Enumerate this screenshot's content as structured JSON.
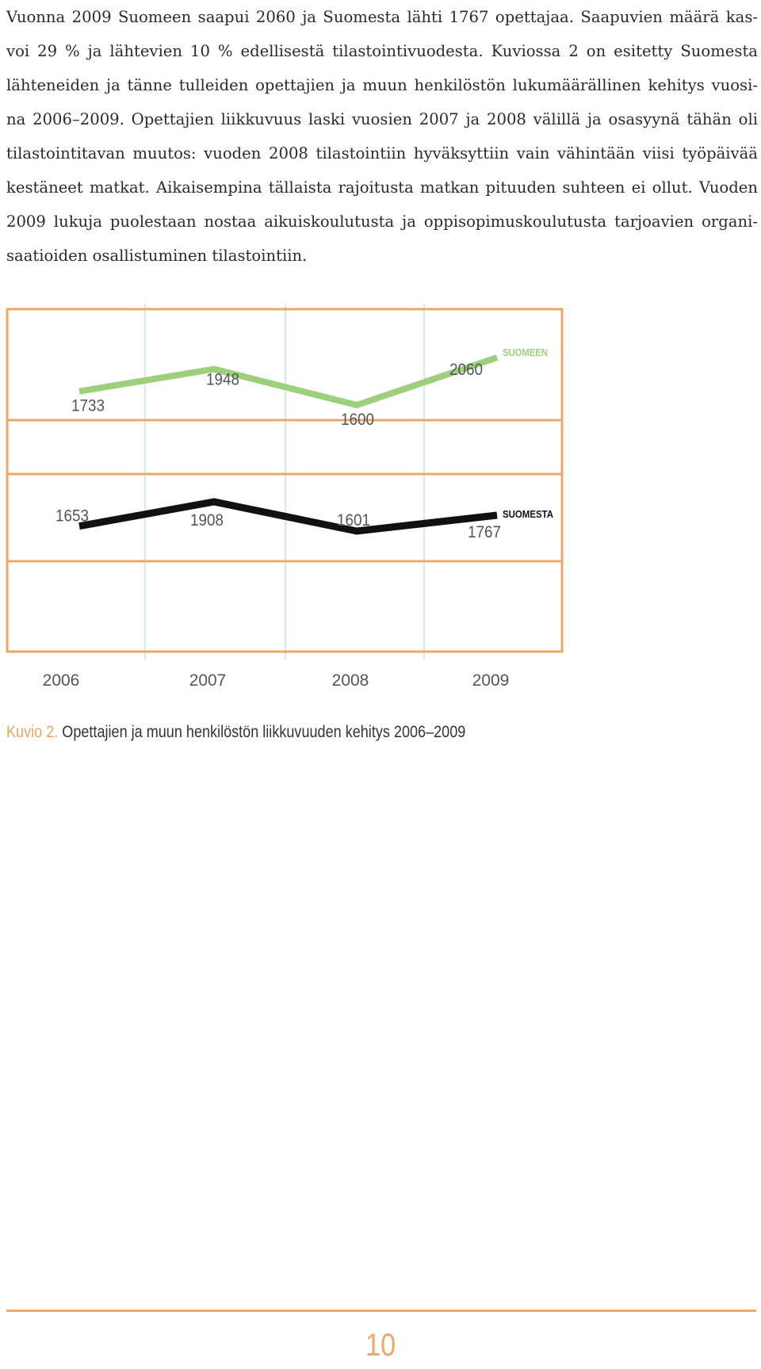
{
  "body_text": {
    "lines": [
      "Vuonna 2009 Suomeen saapui 2060 ja Suomesta lähti 1767 opettajaa. Saapuvien määrä kas-",
      "voi 29 % ja lähtevien 10 % edellisestä tilastointivuodesta. Kuviossa 2 on esitetty Suomesta",
      "lähteneiden ja tänne tulleiden opettajien ja muun henkilöstön lukumäärällinen kehitys vuosi-",
      "na 2006–2009. Opettajien liikkuvuus laski vuosien 2007 ja 2008 välillä ja osasyynä tähän oli",
      "tilastointitavan muutos: vuoden 2008 tilastointiin hyväksyttiin vain vähintään viisi työpäivää",
      "kestäneet matkat. Aikaisempina tällaista rajoitusta matkan pituuden suhteen ei ollut. Vuoden",
      "2009 lukuja puolestaan nostaa aikuiskoulutusta ja oppisopimuskoulutusta tarjoavien organi-",
      "saatioiden osallistuminen tilastointiin."
    ]
  },
  "chart_data": {
    "type": "line",
    "categories": [
      "2006",
      "2007",
      "2008",
      "2009"
    ],
    "series": [
      {
        "name": "SUOMEEN",
        "values": [
          1733,
          1948,
          1600,
          2060
        ],
        "color": "#9dcf7c"
      },
      {
        "name": "SUOMESTA",
        "values": [
          1653,
          1908,
          1601,
          1767
        ],
        "color": "#111111"
      }
    ],
    "title": "",
    "xlabel": "",
    "ylabel": "",
    "grid": true,
    "legend": "series names labelled at the right end of each line",
    "frame_color": "#eaa968",
    "gridline_color": "#c9e3f3"
  },
  "caption": {
    "lead": "Kuvio 2.",
    "text": " Opettajien ja muun henkilöstön liikkuvuuden kehitys 2006–2009"
  },
  "page_number": "10"
}
